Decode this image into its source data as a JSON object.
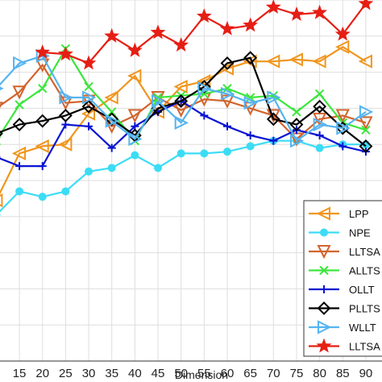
{
  "chart_data": {
    "type": "line",
    "xlabel": "Dimension",
    "ylabel": "",
    "title": "",
    "x": [
      10,
      15,
      20,
      25,
      30,
      35,
      40,
      45,
      50,
      55,
      60,
      65,
      70,
      75,
      80,
      85,
      90,
      95
    ],
    "x_tick_labels": [
      "15",
      "20",
      "25",
      "30",
      "35",
      "40",
      "45",
      "50",
      "55",
      "60",
      "65",
      "70",
      "75",
      "80",
      "85",
      "90"
    ],
    "xlim": [
      10.8,
      93.5
    ],
    "ylim": [
      0,
      1
    ],
    "grid": true,
    "legend_position": "bottom-right",
    "series": [
      {
        "name": "LPP",
        "color": "#f0961e",
        "marker": "triangle-left",
        "values": [
          0.445,
          0.575,
          0.595,
          0.6,
          0.685,
          0.73,
          0.79,
          0.69,
          0.76,
          0.775,
          0.81,
          0.83,
          0.83,
          0.835,
          0.83,
          0.87,
          0.83,
          null
        ]
      },
      {
        "name": "NPE",
        "color": "#3cdcf5",
        "marker": "circle",
        "values": [
          0.405,
          0.47,
          0.455,
          0.47,
          0.525,
          0.535,
          0.57,
          0.535,
          0.575,
          0.575,
          0.58,
          0.595,
          0.61,
          0.61,
          0.59,
          0.6,
          0.6,
          null
        ]
      },
      {
        "name": "LLTSA",
        "color": "#d2642d",
        "marker": "triangle-down",
        "values": [
          0.7,
          0.745,
          0.82,
          0.715,
          0.72,
          0.65,
          0.68,
          0.73,
          0.695,
          0.725,
          0.72,
          0.7,
          0.68,
          0.615,
          0.67,
          0.68,
          0.66,
          null
        ]
      },
      {
        "name": "ALLTSA",
        "color": "#3ce63c",
        "marker": "x",
        "values": [
          0.61,
          0.71,
          0.755,
          0.865,
          0.76,
          0.69,
          0.61,
          0.73,
          0.735,
          0.74,
          0.755,
          0.73,
          0.735,
          0.69,
          0.74,
          0.66,
          0.64,
          null
        ]
      },
      {
        "name": "OLLTSA",
        "color": "#0a14d2",
        "marker": "plus",
        "values": [
          0.565,
          0.54,
          0.54,
          0.655,
          0.65,
          0.59,
          0.65,
          0.69,
          0.72,
          0.68,
          0.65,
          0.625,
          0.61,
          0.64,
          0.625,
          0.595,
          0.58,
          null
        ]
      },
      {
        "name": "PLLTSA",
        "color": "#000000",
        "marker": "diamond",
        "values": [
          0.63,
          0.655,
          0.665,
          0.68,
          0.705,
          0.67,
          0.625,
          0.7,
          0.72,
          0.76,
          0.825,
          0.84,
          0.67,
          0.655,
          0.705,
          0.645,
          0.595,
          null
        ]
      },
      {
        "name": "WLLTSA",
        "color": "#55b4f0",
        "marker": "triangle-right",
        "values": [
          0.755,
          0.825,
          0.845,
          0.73,
          0.73,
          0.665,
          0.615,
          0.72,
          0.66,
          0.755,
          0.74,
          0.715,
          0.73,
          0.61,
          0.655,
          0.645,
          0.69,
          null
        ]
      },
      {
        "name": "LLTSA-VAE",
        "color": "#e61e14",
        "marker": "star",
        "values": [
          null,
          null,
          0.855,
          0.85,
          0.825,
          0.9,
          0.86,
          0.91,
          0.875,
          0.955,
          0.92,
          0.93,
          0.98,
          0.96,
          0.965,
          0.905,
          0.99,
          null
        ]
      }
    ],
    "legend_entries_visible": [
      "LPP",
      "NPE",
      "LLTSA",
      "ALLTS",
      "OLLT",
      "PLLTS",
      "WLLT",
      "LLTSA"
    ]
  }
}
